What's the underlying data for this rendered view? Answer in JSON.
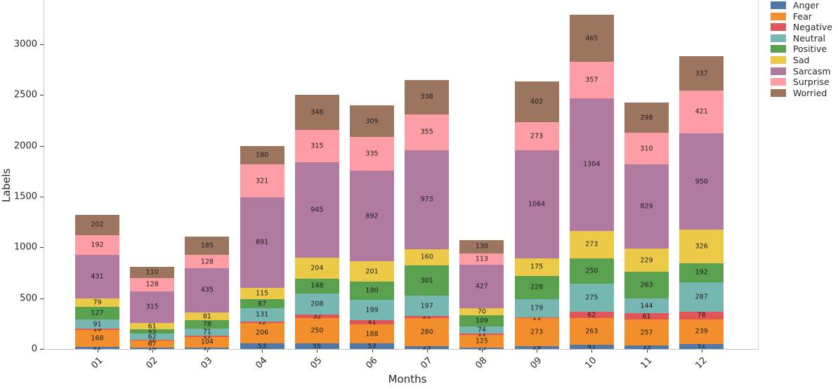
{
  "chart_data": {
    "type": "bar",
    "stacked": true,
    "xlabel": "Months",
    "ylabel": "Labels",
    "categories": [
      "01",
      "02",
      "03",
      "04",
      "05",
      "06",
      "07",
      "08",
      "09",
      "10",
      "11",
      "12"
    ],
    "series": [
      {
        "name": "Anger",
        "color": "#4e79a7",
        "values": [
          22,
          14,
          17,
          53,
          55,
          53,
          25,
          13,
          29,
          41,
          33,
          51
        ]
      },
      {
        "name": "Fear",
        "color": "#f28e2b",
        "values": [
          168,
          67,
          104,
          206,
          250,
          188,
          280,
          125,
          273,
          263,
          257,
          239
        ]
      },
      {
        "name": "Negative",
        "color": "#e15759",
        "values": [
          10,
          6,
          11,
          12,
          32,
          41,
          21,
          11,
          11,
          62,
          61,
          78
        ]
      },
      {
        "name": "Neutral",
        "color": "#76b7b2",
        "values": [
          91,
          62,
          71,
          131,
          208,
          199,
          197,
          74,
          179,
          275,
          144,
          287
        ]
      },
      {
        "name": "Positive",
        "color": "#59a14f",
        "values": [
          127,
          45,
          78,
          87,
          148,
          180,
          301,
          109,
          228,
          250,
          263,
          192
        ]
      },
      {
        "name": "Sad",
        "color": "#edc948",
        "values": [
          79,
          61,
          81,
          115,
          204,
          201,
          160,
          70,
          175,
          273,
          229,
          326
        ]
      },
      {
        "name": "Sarcasm",
        "color": "#b07aa1",
        "values": [
          431,
          315,
          435,
          891,
          945,
          892,
          973,
          427,
          1064,
          1304,
          829,
          950
        ]
      },
      {
        "name": "Surprise",
        "color": "#ff9da7",
        "values": [
          192,
          128,
          128,
          321,
          315,
          335,
          355,
          113,
          273,
          357,
          310,
          421
        ]
      },
      {
        "name": "Worried",
        "color": "#9c755f",
        "values": [
          202,
          110,
          185,
          180,
          348,
          309,
          338,
          130,
          402,
          465,
          298,
          337
        ]
      }
    ],
    "y_ticks": [
      0,
      500,
      1000,
      1500,
      2000,
      2500,
      3000
    ],
    "ylim": [
      0,
      3500
    ],
    "grid": false,
    "legend_position": "upper-right-outside",
    "bar_value_labels_visible": true
  }
}
